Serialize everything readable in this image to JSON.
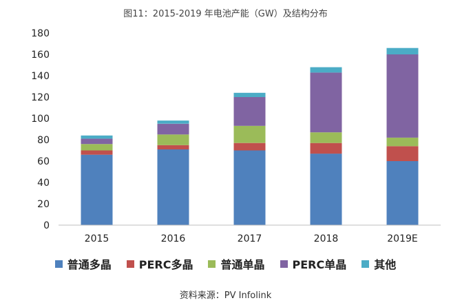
{
  "chart_data": {
    "type": "bar",
    "stacked": true,
    "title": "图11：2015-2019 年电池产能（GW）及结构分布",
    "categories": [
      "2015",
      "2016",
      "2017",
      "2018",
      "2019E"
    ],
    "series": [
      {
        "name": "普通多晶",
        "color": "#4f81bd",
        "values": [
          66,
          71,
          70,
          67,
          60
        ]
      },
      {
        "name": "PERC多晶",
        "color": "#c0504d",
        "values": [
          4,
          4,
          7,
          10,
          14
        ]
      },
      {
        "name": "普通单晶",
        "color": "#9bbb59",
        "values": [
          6,
          10,
          16,
          10,
          8
        ]
      },
      {
        "name": "PERC单晶",
        "color": "#8064a2",
        "values": [
          5,
          10,
          27,
          56,
          78
        ]
      },
      {
        "name": "其他",
        "color": "#4bacc6",
        "values": [
          3,
          3,
          4,
          5,
          6
        ]
      }
    ],
    "ylim": [
      0,
      180
    ],
    "yticks": [
      0,
      20,
      40,
      60,
      80,
      100,
      120,
      140,
      160,
      180
    ],
    "xlabel": "",
    "ylabel": "",
    "grid": false,
    "legend_position": "bottom"
  },
  "source": "资料来源：PV Infolink"
}
